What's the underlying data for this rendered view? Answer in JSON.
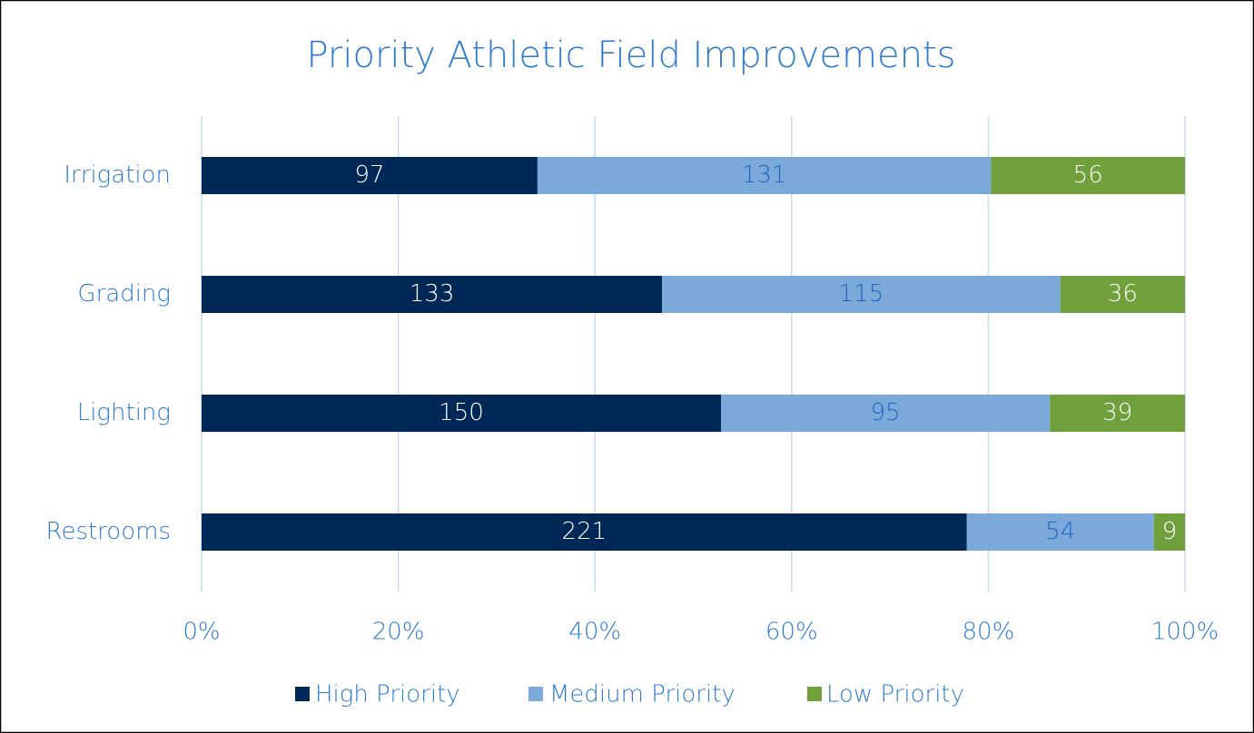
{
  "chart_data": {
    "type": "bar",
    "orientation": "horizontal",
    "stacking": "percent",
    "title": "Priority Athletic Field Improvements",
    "categories": [
      "Irrigation",
      "Grading",
      "Lighting",
      "Restrooms"
    ],
    "series": [
      {
        "name": "High Priority",
        "color": "#002856",
        "label_color": "#ffffff",
        "values": [
          97,
          133,
          150,
          221
        ]
      },
      {
        "name": "Medium Priority",
        "color": "#7aa9da",
        "label_color": "#2563bf",
        "values": [
          131,
          115,
          95,
          54
        ]
      },
      {
        "name": "Low Priority",
        "color": "#70a03c",
        "label_color": "#ffffff",
        "values": [
          56,
          36,
          39,
          9
        ]
      }
    ],
    "xlim": [
      0,
      100
    ],
    "xticks": [
      {
        "value": 0,
        "label": "0%"
      },
      {
        "value": 20,
        "label": "20%"
      },
      {
        "value": 40,
        "label": "40%"
      },
      {
        "value": 60,
        "label": "60%"
      },
      {
        "value": 80,
        "label": "80%"
      },
      {
        "value": 100,
        "label": "100%"
      }
    ],
    "grid": true,
    "legend": "bottom"
  }
}
